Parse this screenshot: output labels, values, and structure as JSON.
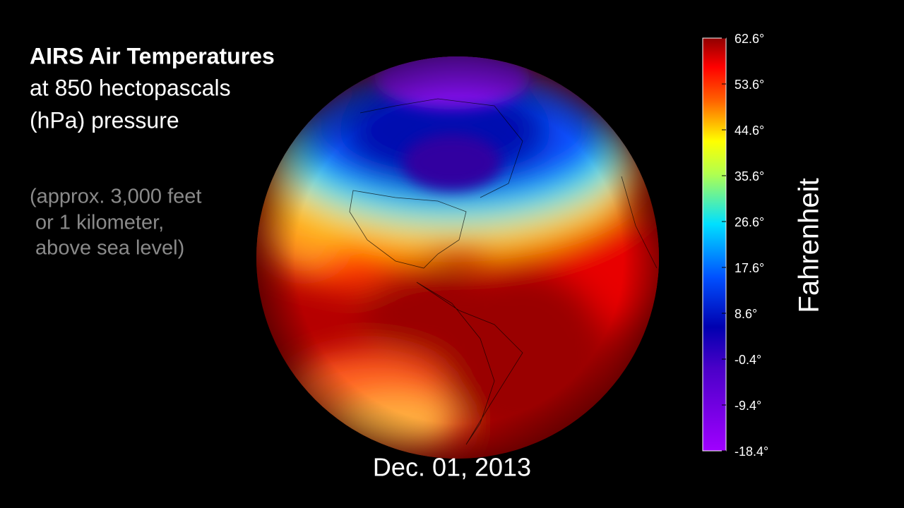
{
  "header": {
    "title": "AIRS Air Temperatures",
    "subtitle_lines": [
      "at 850 hectopascals",
      "(hPa) pressure"
    ]
  },
  "note_lines": [
    "(approx. 3,000 feet",
    " or 1 kilometer,",
    " above sea level)"
  ],
  "date": "Dec. 01, 2013",
  "colorbar": {
    "label": "Fahrenheit",
    "lim": [
      -18.4,
      62.6
    ],
    "ticks": [
      {
        "value": 62.6,
        "label": "62.6°"
      },
      {
        "value": 53.6,
        "label": "53.6°"
      },
      {
        "value": 44.6,
        "label": "44.6°"
      },
      {
        "value": 35.6,
        "label": "35.6°"
      },
      {
        "value": 26.6,
        "label": "26.6°"
      },
      {
        "value": 17.6,
        "label": "17.6°"
      },
      {
        "value": 8.6,
        "label": "8.6°"
      },
      {
        "value": -0.4,
        "label": "-0.4°"
      },
      {
        "value": -9.4,
        "label": "-9.4°"
      },
      {
        "value": -18.4,
        "label": "-18.4°"
      }
    ]
  }
}
